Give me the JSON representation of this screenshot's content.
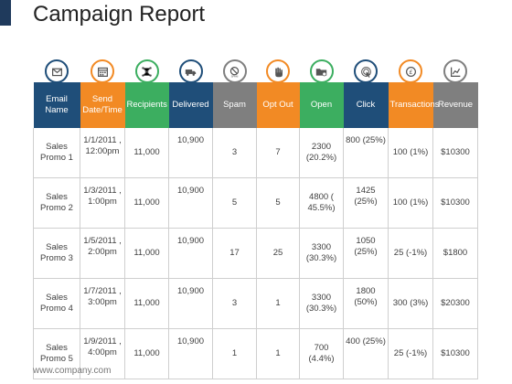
{
  "title": "Campaign Report",
  "footer": "www.company.com",
  "colors": {
    "navy": "#1f4e79",
    "orange": "#f28a24",
    "green": "#3cae60",
    "gray": "#7f7f7f"
  },
  "columns": [
    {
      "label": "Email Name",
      "icon": "mail-icon",
      "color": "#1f4e79"
    },
    {
      "label": "Send Date/Time",
      "icon": "calendar-icon",
      "color": "#f28a24"
    },
    {
      "label": "Recipients",
      "icon": "network-icon",
      "color": "#3cae60"
    },
    {
      "label": "Delivered",
      "icon": "truck-icon",
      "color": "#1f4e79"
    },
    {
      "label": "Spam",
      "icon": "spam-icon",
      "color": "#7f7f7f"
    },
    {
      "label": "Opt Out",
      "icon": "hand-icon",
      "color": "#f28a24"
    },
    {
      "label": "Open",
      "icon": "folder-icon",
      "color": "#3cae60"
    },
    {
      "label": "Click",
      "icon": "cursor-click-icon",
      "color": "#1f4e79"
    },
    {
      "label": "Transactions",
      "icon": "currency-icon",
      "color": "#f28a24"
    },
    {
      "label": "Revenue",
      "icon": "chart-icon",
      "color": "#7f7f7f"
    }
  ],
  "rows": [
    [
      "Sales Promo 1",
      "1/1/2011 , 12:00pm",
      "11,000",
      "10,900",
      "3",
      "7",
      "2300 (20.2%)",
      "800 (25%)",
      "100 (1%)",
      "$10300"
    ],
    [
      "Sales Promo 2",
      "1/3/2011 , 1:00pm",
      "11,000",
      "10,900",
      "5",
      "5",
      "4800 ( 45.5%)",
      "1425 (25%)",
      "100 (1%)",
      "$10300"
    ],
    [
      "Sales Promo 3",
      "1/5/2011 , 2:00pm",
      "11,000",
      "10,900",
      "17",
      "25",
      "3300 (30.3%)",
      "1050 (25%)",
      "25 (-1%)",
      "$1800"
    ],
    [
      "Sales Promo 4",
      "1/7/2011 , 3:00pm",
      "11,000",
      "10,900",
      "3",
      "1",
      "3300 (30.3%)",
      "1800 (50%)",
      "300 (3%)",
      "$20300"
    ],
    [
      "Sales Promo 5",
      "1/9/2011 , 4:00pm",
      "11,000",
      "10,900",
      "1",
      "1",
      "700 (4.4%)",
      "400 (25%)",
      "25 (-1%)",
      "$10300"
    ]
  ]
}
